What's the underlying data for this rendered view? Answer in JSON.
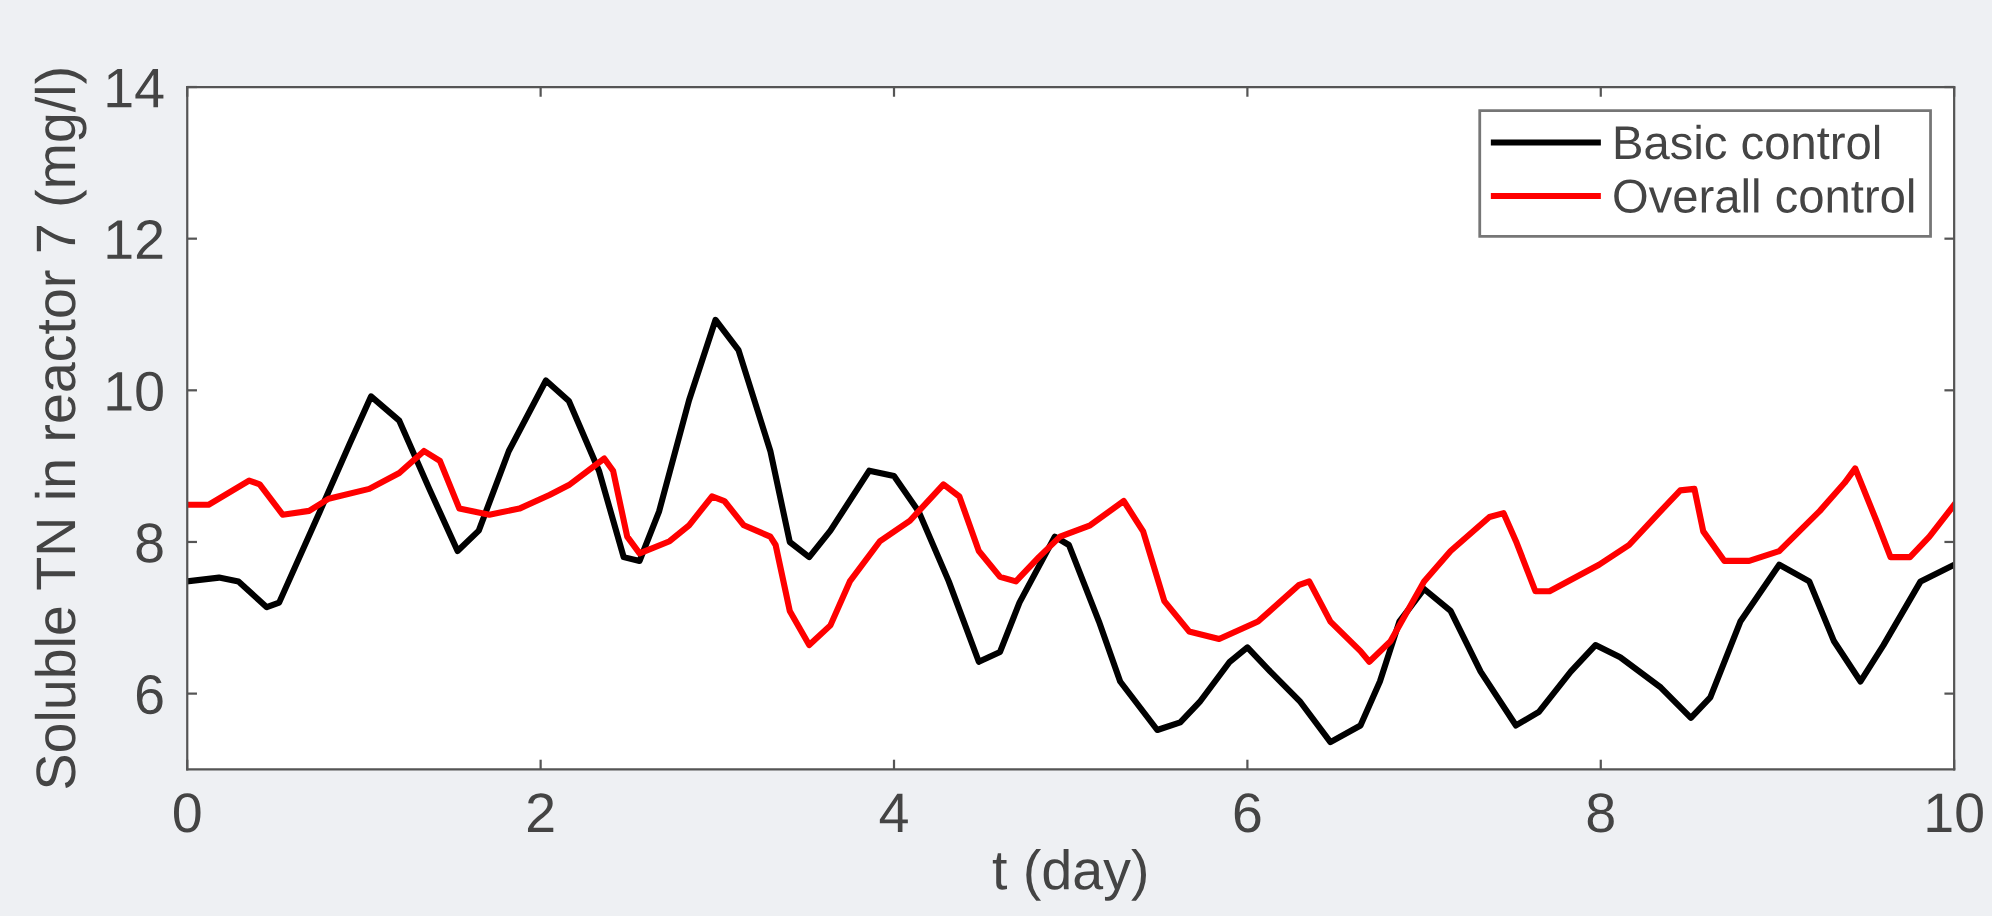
{
  "chart_data": {
    "type": "line",
    "xlabel": "t (day)",
    "ylabel": "Soluble TN in reactor 7 (mg/l)",
    "xlim": [
      0,
      10
    ],
    "ylim": [
      5,
      14
    ],
    "xticks": [
      0,
      2,
      4,
      6,
      8,
      10
    ],
    "yticks": [
      6,
      8,
      10,
      12,
      14
    ],
    "grid": false,
    "legend": "top right",
    "line_style": "solid",
    "marker": "none",
    "series": [
      {
        "name": "Basic control",
        "color": "#000000",
        "x": [
          0,
          0.18,
          0.29,
          0.45,
          0.52,
          0.75,
          0.92,
          1.04,
          1.2,
          1.37,
          1.53,
          1.65,
          1.82,
          2.03,
          2.16,
          2.33,
          2.47,
          2.56,
          2.67,
          2.84,
          2.99,
          3.12,
          3.3,
          3.41,
          3.52,
          3.64,
          3.86,
          4.0,
          4.14,
          4.31,
          4.48,
          4.6,
          4.71,
          4.91,
          4.99,
          5.16,
          5.28,
          5.49,
          5.62,
          5.73,
          5.9,
          6.0,
          6.13,
          6.3,
          6.47,
          6.64,
          6.75,
          6.86,
          7.0,
          7.15,
          7.32,
          7.52,
          7.65,
          7.83,
          7.97,
          8.11,
          8.34,
          8.51,
          8.62,
          8.79,
          9.01,
          9.18,
          9.32,
          9.47,
          9.6,
          9.81,
          10
        ],
        "values": [
          7.48,
          7.53,
          7.48,
          7.14,
          7.2,
          8.4,
          9.3,
          9.92,
          9.6,
          8.7,
          7.88,
          8.15,
          9.2,
          10.13,
          9.86,
          8.94,
          7.8,
          7.75,
          8.4,
          9.87,
          10.93,
          10.53,
          9.2,
          8.0,
          7.8,
          8.15,
          8.94,
          8.87,
          8.4,
          7.48,
          6.42,
          6.55,
          7.2,
          8.07,
          7.96,
          6.95,
          6.16,
          5.52,
          5.62,
          5.89,
          6.42,
          6.61,
          6.29,
          5.89,
          5.36,
          5.58,
          6.16,
          6.95,
          7.38,
          7.09,
          6.29,
          5.58,
          5.76,
          6.29,
          6.64,
          6.48,
          6.08,
          5.68,
          5.95,
          6.95,
          7.7,
          7.48,
          6.69,
          6.16,
          6.64,
          7.48,
          7.7
        ]
      },
      {
        "name": "Overall control",
        "color": "#ff0000",
        "x": [
          0,
          0.12,
          0.35,
          0.41,
          0.54,
          0.69,
          0.8,
          1.03,
          1.2,
          1.34,
          1.43,
          1.54,
          1.71,
          1.88,
          2.05,
          2.16,
          2.36,
          2.41,
          2.49,
          2.56,
          2.73,
          2.84,
          2.97,
          3.04,
          3.15,
          3.3,
          3.33,
          3.41,
          3.52,
          3.64,
          3.75,
          3.92,
          4.09,
          4.28,
          4.37,
          4.48,
          4.6,
          4.69,
          4.82,
          4.94,
          5.11,
          5.3,
          5.41,
          5.53,
          5.67,
          5.84,
          6.06,
          6.29,
          6.35,
          6.47,
          6.64,
          6.69,
          6.81,
          7.0,
          7.15,
          7.37,
          7.45,
          7.52,
          7.63,
          7.71,
          7.99,
          8.16,
          8.34,
          8.45,
          8.53,
          8.58,
          8.7,
          8.84,
          9.01,
          9.24,
          9.38,
          9.44,
          9.56,
          9.64,
          9.75,
          9.86,
          10
        ],
        "values": [
          8.49,
          8.49,
          8.81,
          8.76,
          8.36,
          8.41,
          8.57,
          8.7,
          8.91,
          9.2,
          9.07,
          8.44,
          8.36,
          8.44,
          8.62,
          8.75,
          9.1,
          8.94,
          8.07,
          7.85,
          8.01,
          8.22,
          8.6,
          8.54,
          8.22,
          8.07,
          7.96,
          7.09,
          6.64,
          6.9,
          7.48,
          8.01,
          8.28,
          8.76,
          8.6,
          7.88,
          7.54,
          7.48,
          7.8,
          8.07,
          8.22,
          8.54,
          8.14,
          7.22,
          6.82,
          6.72,
          6.95,
          7.43,
          7.48,
          6.95,
          6.56,
          6.42,
          6.69,
          7.48,
          7.88,
          8.33,
          8.38,
          8.01,
          7.35,
          7.35,
          7.7,
          7.96,
          8.41,
          8.68,
          8.7,
          8.14,
          7.75,
          7.75,
          7.88,
          8.41,
          8.78,
          8.97,
          8.28,
          7.8,
          7.8,
          8.07,
          8.49
        ]
      }
    ]
  }
}
